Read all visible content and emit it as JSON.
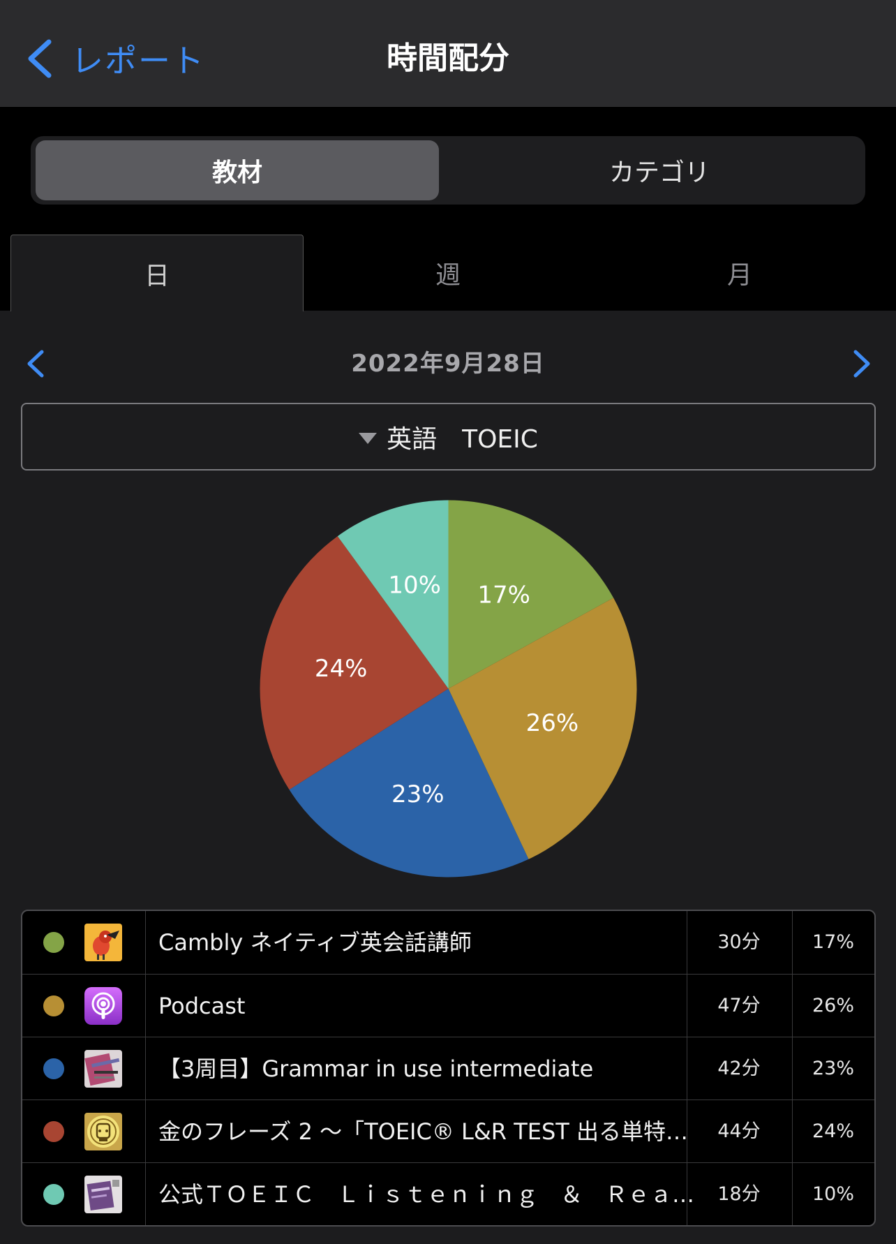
{
  "nav": {
    "back_label": "レポート",
    "title": "時間配分"
  },
  "segmented": {
    "items": [
      "教材",
      "カテゴリ"
    ],
    "selected": 0
  },
  "period_tabs": {
    "items": [
      "日",
      "週",
      "月"
    ],
    "selected": 0
  },
  "date": "2022年9月28日",
  "filter": {
    "label": "英語　TOEIC",
    "icon": "triangle-down-icon"
  },
  "chart_data": {
    "type": "pie",
    "slices": [
      {
        "label": "Cambly ネイティブ英会話講師",
        "value": 17,
        "display": "17%",
        "color": "#84a447"
      },
      {
        "label": "Podcast",
        "value": 26,
        "display": "26%",
        "color": "#b78f34"
      },
      {
        "label": "【3周目】Grammar in use intermediate",
        "value": 23,
        "display": "23%",
        "color": "#2b63a8"
      },
      {
        "label": "金のフレーズ 2 〜「TOEIC® L&R TEST 出る単特…",
        "value": 24,
        "display": "24%",
        "color": "#a84532"
      },
      {
        "label": "公式ＴＯＥＩＣ　Ｌｉｓｔｅｎｉｎｇ　＆　Ｒｅａ…",
        "value": 10,
        "display": "10%",
        "color": "#6fc9b3"
      }
    ]
  },
  "legend": {
    "rows": [
      {
        "name": "Cambly ネイティブ英会話講師",
        "minutes": "30分",
        "percent": "17%",
        "color": "#84a447",
        "icon": "cambly-toucan-icon"
      },
      {
        "name": "Podcast",
        "minutes": "47分",
        "percent": "26%",
        "color": "#b78f34",
        "icon": "podcast-icon"
      },
      {
        "name": "【3周目】Grammar in use intermediate",
        "minutes": "42分",
        "percent": "23%",
        "color": "#2b63a8",
        "icon": "book-cover-icon"
      },
      {
        "name": "金のフレーズ 2 〜「TOEIC® L&R TEST 出る単特…",
        "minutes": "44分",
        "percent": "24%",
        "color": "#a84532",
        "icon": "gold-phrase-book-icon"
      },
      {
        "name": "公式ＴＯＥＩＣ　Ｌｉｓｔｅｎｉｎｇ　＆　Ｒｅａ…",
        "minutes": "18分",
        "percent": "10%",
        "color": "#6fc9b3",
        "icon": "toeic-book-icon"
      }
    ]
  }
}
